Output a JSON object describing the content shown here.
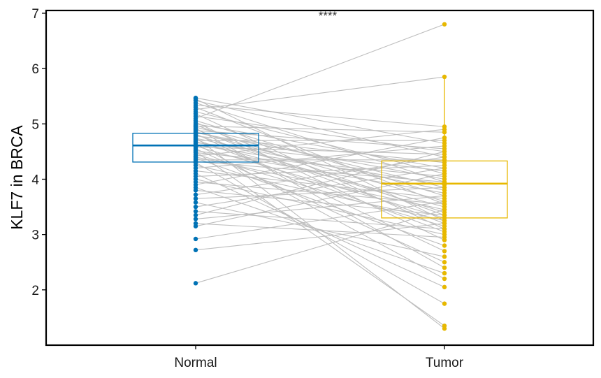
{
  "chart_data": {
    "type": "paired-boxplot",
    "title": "",
    "xlabel": "",
    "ylabel": "KLF7 in BRCA",
    "ylim": [
      1.0,
      7.05
    ],
    "yticks": [
      2,
      3,
      4,
      5,
      6,
      7
    ],
    "yticks_labels": [
      "2",
      "3",
      "4",
      "5",
      "6",
      "7"
    ],
    "categories": [
      "Normal",
      "Tumor"
    ],
    "significance": "****",
    "colors": {
      "Normal": "#0072B5",
      "Tumor": "#E7B800",
      "lines": "#BEBEBE"
    },
    "boxes": [
      {
        "group": "Normal",
        "q1": 4.31,
        "median": 4.61,
        "q3": 4.83,
        "whisker_low": 4.31,
        "whisker_high": 4.83
      },
      {
        "group": "Tumor",
        "q1": 3.3,
        "median": 3.92,
        "q3": 4.33,
        "whisker_low": 3.3,
        "whisker_high": 5.85
      }
    ],
    "pairs": [
      [
        2.12,
        3.45
      ],
      [
        2.72,
        3.2
      ],
      [
        2.92,
        3.6
      ],
      [
        3.15,
        4.1
      ],
      [
        3.2,
        2.95
      ],
      [
        3.28,
        3.7
      ],
      [
        3.35,
        4.5
      ],
      [
        3.42,
        3.1
      ],
      [
        3.5,
        4.2
      ],
      [
        3.58,
        2.6
      ],
      [
        3.65,
        3.85
      ],
      [
        3.72,
        4.4
      ],
      [
        3.8,
        3.35
      ],
      [
        3.85,
        2.3
      ],
      [
        3.9,
        4.75
      ],
      [
        3.95,
        3.55
      ],
      [
        4.0,
        3.0
      ],
      [
        4.05,
        4.25
      ],
      [
        4.1,
        2.05
      ],
      [
        4.15,
        3.65
      ],
      [
        4.2,
        4.6
      ],
      [
        4.25,
        3.25
      ],
      [
        4.3,
        1.75
      ],
      [
        4.32,
        3.95
      ],
      [
        4.35,
        4.35
      ],
      [
        4.38,
        2.8
      ],
      [
        4.4,
        3.45
      ],
      [
        4.42,
        4.9
      ],
      [
        4.45,
        3.15
      ],
      [
        4.48,
        4.05
      ],
      [
        4.5,
        1.35
      ],
      [
        4.52,
        3.75
      ],
      [
        4.55,
        2.5
      ],
      [
        4.58,
        4.45
      ],
      [
        4.6,
        3.3
      ],
      [
        4.62,
        3.9
      ],
      [
        4.64,
        2.2
      ],
      [
        4.66,
        4.15
      ],
      [
        4.68,
        3.5
      ],
      [
        4.7,
        4.7
      ],
      [
        4.72,
        3.05
      ],
      [
        4.74,
        3.8
      ],
      [
        4.76,
        1.3
      ],
      [
        4.78,
        4.3
      ],
      [
        4.8,
        3.4
      ],
      [
        4.82,
        2.7
      ],
      [
        4.84,
        4.0
      ],
      [
        4.86,
        3.6
      ],
      [
        4.88,
        4.55
      ],
      [
        4.9,
        3.2
      ],
      [
        4.92,
        2.4
      ],
      [
        4.94,
        3.85
      ],
      [
        4.96,
        4.85
      ],
      [
        4.98,
        3.35
      ],
      [
        5.0,
        4.2
      ],
      [
        5.03,
        2.9
      ],
      [
        5.06,
        3.7
      ],
      [
        5.1,
        6.8
      ],
      [
        5.14,
        4.5
      ],
      [
        5.18,
        3.1
      ],
      [
        5.22,
        4.1
      ],
      [
        5.26,
        5.85
      ],
      [
        5.3,
        3.55
      ],
      [
        5.34,
        4.95
      ],
      [
        5.38,
        3.95
      ],
      [
        5.42,
        4.4
      ],
      [
        5.45,
        3.25
      ],
      [
        5.47,
        4.65
      ]
    ]
  }
}
